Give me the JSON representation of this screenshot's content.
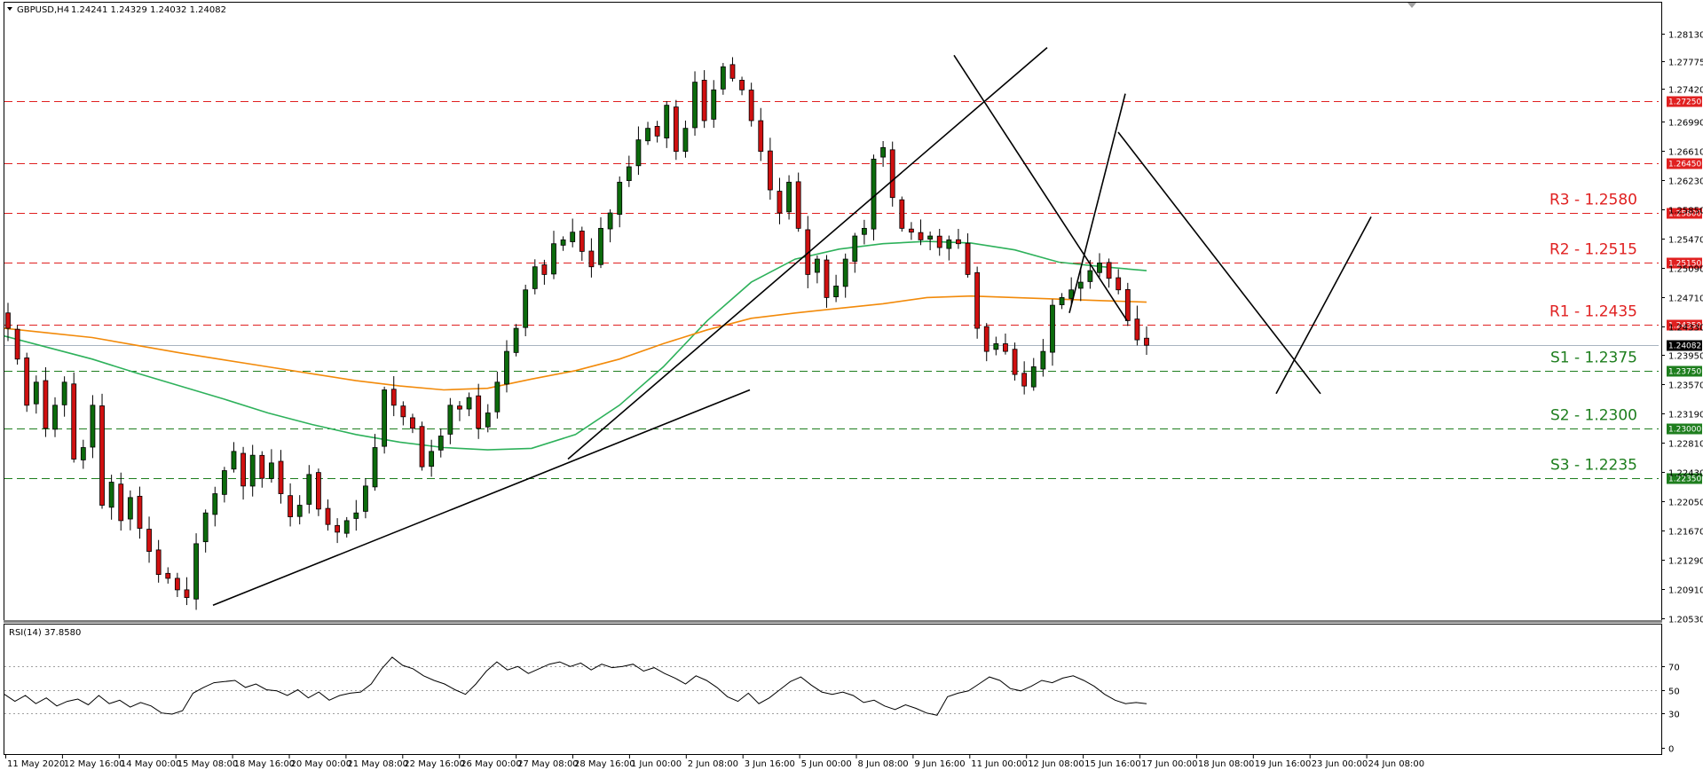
{
  "header": {
    "symbol": "GBPUSD,H4",
    "ohlc": "1.24241 1.24329 1.24032 1.24082"
  },
  "rsi_panel": {
    "label": "RSI(14) 37.8580",
    "ticks": [
      "70",
      "50",
      "30",
      "0"
    ]
  },
  "chart_data": {
    "type": "candlestick",
    "instrument": "GBPUSD",
    "timeframe": "H4",
    "ylim": [
      1.2053,
      1.2813
    ],
    "price_ticks": [
      "1.28130",
      "1.27775",
      "1.27420",
      "1.26990",
      "1.26610",
      "1.26230",
      "1.25850",
      "1.25470",
      "1.25090",
      "1.24710",
      "1.24330",
      "1.23950",
      "1.23570",
      "1.23190",
      "1.22810",
      "1.22430",
      "1.22050",
      "1.21670",
      "1.21290",
      "1.20910",
      "1.20530"
    ],
    "time_ticks": [
      "11 May 2020",
      "12 May 16:00",
      "14 May 00:00",
      "15 May 08:00",
      "18 May 16:00",
      "20 May 00:00",
      "21 May 08:00",
      "22 May 16:00",
      "26 May 00:00",
      "27 May 08:00",
      "28 May 16:00",
      "1 Jun 00:00",
      "2 Jun 08:00",
      "3 Jun 16:00",
      "5 Jun 00:00",
      "8 Jun 08:00",
      "9 Jun 16:00",
      "11 Jun 00:00",
      "12 Jun 08:00",
      "15 Jun 16:00",
      "17 Jun 00:00",
      "18 Jun 08:00",
      "19 Jun 16:00",
      "23 Jun 00:00",
      "24 Jun 08:00"
    ],
    "current_price": {
      "value": 1.24082,
      "label": "1.24082"
    },
    "levels": [
      {
        "name": "R3 - 1.2580",
        "value": 1.258,
        "tag": "1.25800",
        "color": "#e02020"
      },
      {
        "name": "R2 - 1.2515",
        "value": 1.2515,
        "tag": "1.25150",
        "color": "#e02020"
      },
      {
        "name": "R1 - 1.2435",
        "value": 1.2435,
        "tag": "1.24350",
        "color": "#e02020"
      },
      {
        "name": "S1 - 1.2375",
        "value": 1.2375,
        "tag": "1.23750",
        "color": "#1e7e1e"
      },
      {
        "name": "S2 - 1.2300",
        "value": 1.23,
        "tag": "1.23000",
        "color": "#1e7e1e"
      },
      {
        "name": "S3 - 1.2235",
        "value": 1.2235,
        "tag": "1.22350",
        "color": "#1e7e1e"
      },
      {
        "name": "",
        "value": 1.2725,
        "tag": "1.27250",
        "color": "#e02020"
      },
      {
        "name": "",
        "value": 1.2645,
        "tag": "1.26450",
        "color": "#e02020"
      }
    ],
    "close_path": [
      1.243,
      1.239,
      1.233,
      1.236,
      1.23,
      1.233,
      1.236,
      1.226,
      1.2275,
      1.233,
      1.22,
      1.223,
      1.218,
      1.221,
      1.217,
      1.214,
      1.211,
      1.2105,
      1.209,
      1.208,
      1.215,
      1.219,
      1.2215,
      1.2245,
      1.227,
      1.2225,
      1.2265,
      1.2235,
      1.2255,
      1.2215,
      1.2185,
      1.22,
      1.224,
      1.2195,
      1.2175,
      1.2165,
      1.218,
      1.219,
      1.2225,
      1.2275,
      1.235,
      1.233,
      1.2315,
      1.23,
      1.225,
      1.227,
      1.229,
      1.233,
      1.2325,
      1.234,
      1.23,
      1.232,
      1.236,
      1.24,
      1.243,
      1.248,
      1.251,
      1.25,
      1.254,
      1.2545,
      1.2555,
      1.253,
      1.251,
      1.256,
      1.258,
      1.262,
      1.264,
      1.2675,
      1.269,
      1.268,
      1.272,
      1.266,
      1.269,
      1.275,
      1.27,
      1.274,
      1.277,
      1.2755,
      1.274,
      1.27,
      1.266,
      1.261,
      1.258,
      1.262,
      1.256,
      1.25,
      1.252,
      1.247,
      1.2485,
      1.252,
      1.255,
      1.256,
      1.265,
      1.2665,
      1.26,
      1.256,
      1.2555,
      1.2545,
      1.255,
      1.2535,
      1.2545,
      1.254,
      1.25,
      1.243,
      1.24,
      1.241,
      1.24,
      1.237,
      1.2355,
      1.238,
      1.24,
      1.246,
      1.247,
      1.248,
      1.249,
      1.2505,
      1.2515,
      1.2495,
      1.248,
      1.244,
      1.2415,
      1.2408
    ],
    "series": [
      {
        "name": "",
        "type": "moving-average",
        "color": "#2eb15b",
        "values": [
          1.242,
          1.2405,
          1.239,
          1.2372,
          1.2355,
          1.2338,
          1.232,
          1.2305,
          1.2292,
          1.2282,
          1.2275,
          1.2272,
          1.2274,
          1.2292,
          1.233,
          1.238,
          1.244,
          1.249,
          1.252,
          1.2533,
          1.254,
          1.2543,
          1.2541,
          1.2532,
          1.2516,
          1.251,
          1.2505
        ]
      },
      {
        "name": "",
        "type": "moving-average",
        "color": "#f28a0a",
        "values": [
          1.243,
          1.2424,
          1.2418,
          1.2408,
          1.2398,
          1.2389,
          1.238,
          1.2371,
          1.2362,
          1.2355,
          1.235,
          1.2352,
          1.2364,
          1.2375,
          1.239,
          1.241,
          1.2428,
          1.2443,
          1.245,
          1.2456,
          1.2462,
          1.247,
          1.2472,
          1.247,
          1.2468,
          1.2466,
          1.2464
        ]
      }
    ],
    "rsi": {
      "ylim": [
        0,
        100
      ],
      "levels": [
        70,
        50,
        30
      ],
      "values": [
        46,
        40,
        45,
        38,
        43,
        36,
        40,
        42,
        37,
        45,
        38,
        41,
        35,
        39,
        36,
        30,
        29,
        32,
        47,
        52,
        56,
        57,
        58,
        52,
        55,
        50,
        49,
        45,
        50,
        43,
        48,
        41,
        45,
        47,
        48,
        55,
        68,
        78,
        71,
        68,
        62,
        58,
        55,
        50,
        46,
        55,
        66,
        74,
        67,
        70,
        64,
        68,
        72,
        74,
        70,
        73,
        67,
        72,
        69,
        70,
        72,
        66,
        69,
        64,
        60,
        55,
        62,
        58,
        52,
        44,
        40,
        47,
        38,
        43,
        50,
        57,
        61,
        54,
        48,
        46,
        48,
        45,
        39,
        41,
        36,
        33,
        37,
        34,
        30,
        28,
        44,
        47,
        49,
        55,
        61,
        58,
        51,
        49,
        53,
        58,
        56,
        60,
        62,
        58,
        53,
        46,
        41,
        38,
        39,
        38
      ]
    }
  }
}
